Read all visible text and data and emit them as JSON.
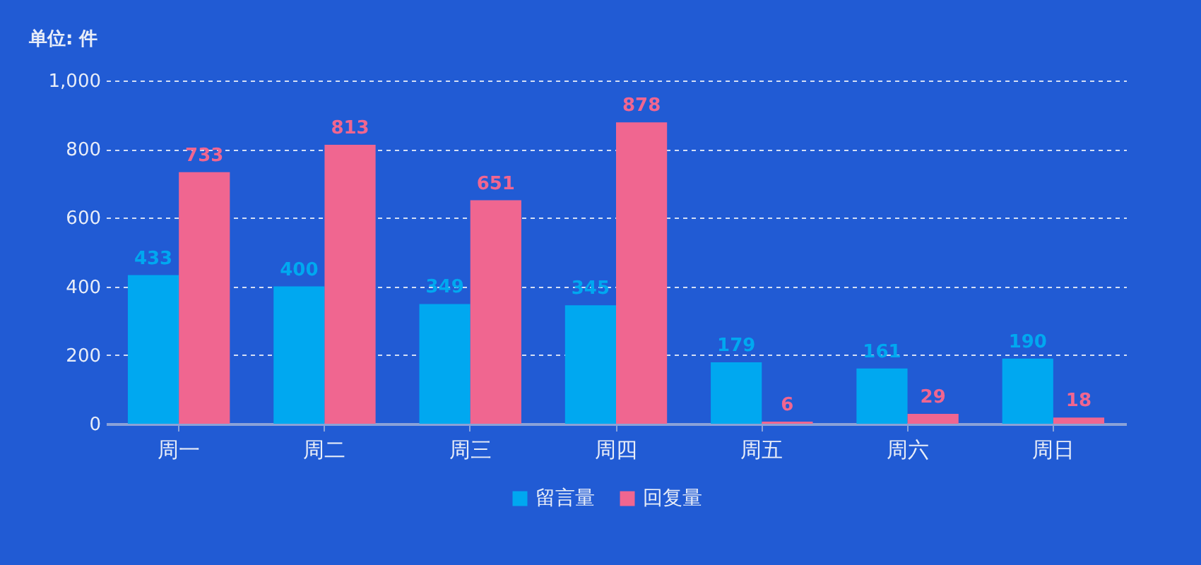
{
  "chart_data": {
    "type": "bar",
    "ylabel": "单位: 件",
    "categories": [
      "周一",
      "周二",
      "周三",
      "周四",
      "周五",
      "周六",
      "周日"
    ],
    "series": [
      {
        "name": "留言量",
        "color": "#00a8f0",
        "values": [
          433,
          400,
          349,
          345,
          179,
          161,
          190
        ]
      },
      {
        "name": "回复量",
        "color": "#f06690",
        "values": [
          733,
          813,
          651,
          878,
          6,
          29,
          18
        ]
      }
    ],
    "ylim": [
      0,
      1000
    ],
    "yticks": [
      0,
      200,
      400,
      600,
      800,
      {
        "value": 1000,
        "label": "1,000"
      }
    ],
    "grid": "y",
    "legend": "bottom",
    "data_labels": true
  }
}
